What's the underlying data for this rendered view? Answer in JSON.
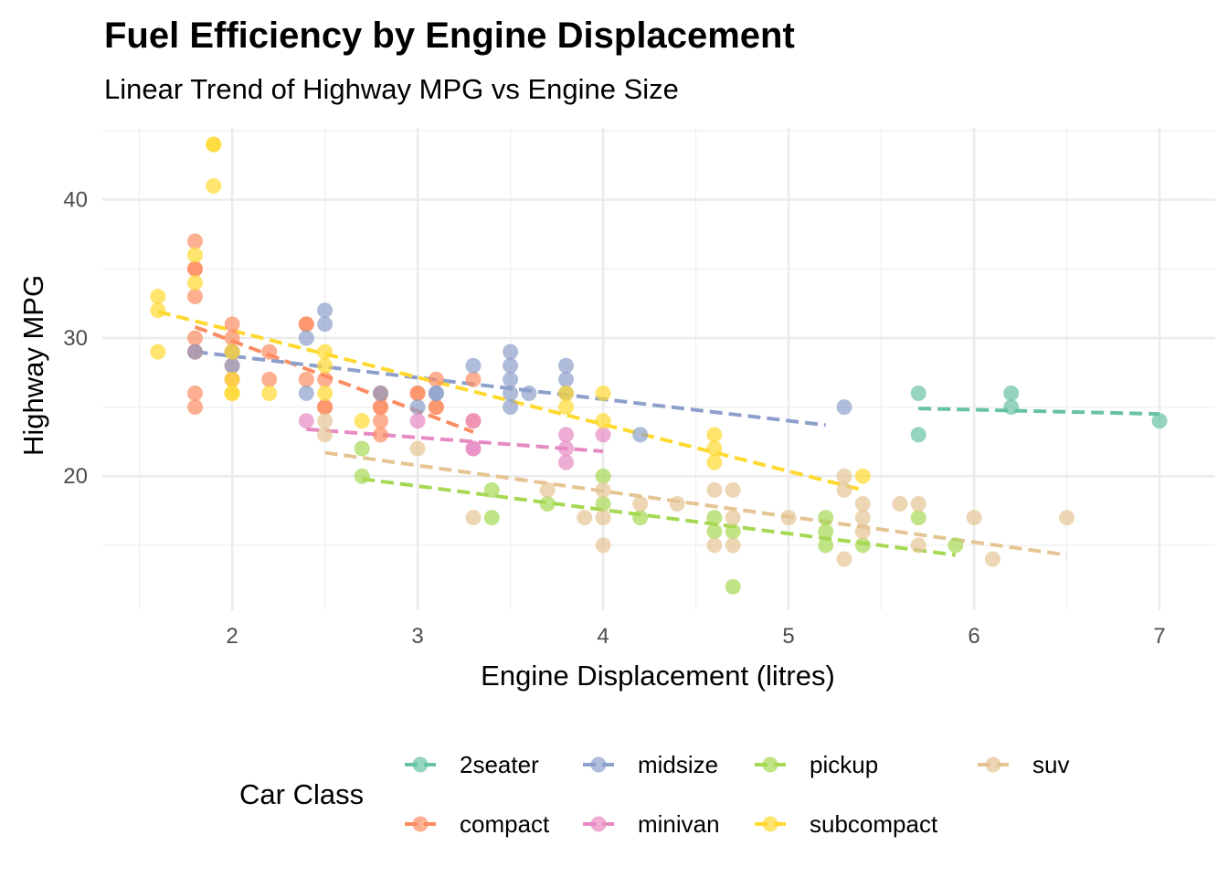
{
  "chart_data": {
    "type": "scatter",
    "title": "Fuel Efficiency by Engine Displacement",
    "subtitle": "Linear Trend of Highway MPG vs Engine Size",
    "xlabel": "Engine Displacement (litres)",
    "ylabel": "Highway MPG",
    "xlim": [
      1.3,
      7.3
    ],
    "ylim": [
      10.3,
      45.2
    ],
    "x_ticks": [
      "2",
      "3",
      "4",
      "5",
      "6",
      "7"
    ],
    "y_ticks": [
      "20",
      "30",
      "40"
    ],
    "grid": true,
    "legend": {
      "title": "Car Class",
      "placement": "bottom"
    },
    "series": [
      {
        "name": "2seater",
        "color": "#66C2A5",
        "points": [
          [
            5.7,
            26
          ],
          [
            5.7,
            23
          ],
          [
            6.2,
            26
          ],
          [
            6.2,
            25
          ],
          [
            7.0,
            24
          ]
        ],
        "trend": [
          [
            5.7,
            24.9
          ],
          [
            7.0,
            24.5
          ]
        ]
      },
      {
        "name": "compact",
        "color": "#FC8D62",
        "points": [
          [
            1.8,
            29
          ],
          [
            1.8,
            29
          ],
          [
            2.0,
            31
          ],
          [
            2.0,
            30
          ],
          [
            2.8,
            26
          ],
          [
            2.8,
            26
          ],
          [
            3.1,
            27
          ],
          [
            1.8,
            26
          ],
          [
            1.8,
            25
          ],
          [
            2.0,
            28
          ],
          [
            2.0,
            27
          ],
          [
            2.8,
            25
          ],
          [
            2.8,
            25
          ],
          [
            3.1,
            25
          ],
          [
            3.1,
            25
          ],
          [
            2.2,
            27
          ],
          [
            2.2,
            29
          ],
          [
            2.4,
            31
          ],
          [
            2.4,
            31
          ],
          [
            3.0,
            26
          ],
          [
            3.0,
            26
          ],
          [
            3.3,
            27
          ],
          [
            1.8,
            37
          ],
          [
            1.8,
            35
          ],
          [
            1.8,
            35
          ],
          [
            1.8,
            33
          ],
          [
            1.8,
            30
          ],
          [
            2.0,
            29
          ],
          [
            2.4,
            27
          ],
          [
            2.5,
            27
          ],
          [
            2.5,
            25
          ],
          [
            2.5,
            25
          ],
          [
            2.8,
            23
          ],
          [
            2.8,
            24
          ],
          [
            3.3,
            24
          ]
        ],
        "trend": [
          [
            1.8,
            30.8
          ],
          [
            3.3,
            23.2
          ]
        ]
      },
      {
        "name": "midsize",
        "color": "#8DA0CB",
        "points": [
          [
            2.4,
            30
          ],
          [
            2.4,
            26
          ],
          [
            2.5,
            32
          ],
          [
            2.5,
            31
          ],
          [
            2.8,
            26
          ],
          [
            3.0,
            25
          ],
          [
            3.1,
            26
          ],
          [
            3.1,
            26
          ],
          [
            3.3,
            28
          ],
          [
            3.5,
            29
          ],
          [
            3.5,
            28
          ],
          [
            3.5,
            27
          ],
          [
            3.5,
            26
          ],
          [
            3.5,
            25
          ],
          [
            3.6,
            26
          ],
          [
            3.8,
            28
          ],
          [
            3.8,
            27
          ],
          [
            3.8,
            26
          ],
          [
            4.2,
            23
          ],
          [
            5.3,
            25
          ],
          [
            1.8,
            29
          ],
          [
            2.0,
            29
          ],
          [
            2.0,
            28
          ]
        ],
        "trend": [
          [
            1.8,
            29.0
          ],
          [
            5.2,
            23.7
          ]
        ]
      },
      {
        "name": "minivan",
        "color": "#E78AC3",
        "points": [
          [
            2.4,
            24
          ],
          [
            3.0,
            24
          ],
          [
            3.3,
            22
          ],
          [
            3.3,
            22
          ],
          [
            3.3,
            24
          ],
          [
            3.8,
            23
          ],
          [
            3.8,
            22
          ],
          [
            3.8,
            21
          ],
          [
            4.0,
            23
          ]
        ],
        "trend": [
          [
            2.4,
            23.4
          ],
          [
            4.0,
            21.8
          ]
        ]
      },
      {
        "name": "pickup",
        "color": "#A6D854",
        "points": [
          [
            2.7,
            22
          ],
          [
            2.7,
            20
          ],
          [
            3.4,
            19
          ],
          [
            3.4,
            17
          ],
          [
            3.7,
            18
          ],
          [
            4.0,
            20
          ],
          [
            4.0,
            18
          ],
          [
            4.2,
            17
          ],
          [
            4.6,
            17
          ],
          [
            4.6,
            16
          ],
          [
            4.7,
            16
          ],
          [
            4.7,
            12
          ],
          [
            5.2,
            17
          ],
          [
            5.2,
            15
          ],
          [
            5.2,
            16
          ],
          [
            5.7,
            17
          ],
          [
            5.9,
            15
          ],
          [
            5.4,
            15
          ]
        ],
        "trend": [
          [
            2.7,
            19.8
          ],
          [
            5.9,
            14.3
          ]
        ]
      },
      {
        "name": "subcompact",
        "color": "#FFD92F",
        "points": [
          [
            1.6,
            33
          ],
          [
            1.6,
            32
          ],
          [
            1.6,
            29
          ],
          [
            1.8,
            36
          ],
          [
            1.8,
            34
          ],
          [
            1.9,
            44
          ],
          [
            1.9,
            44
          ],
          [
            1.9,
            41
          ],
          [
            2.0,
            29
          ],
          [
            2.0,
            27
          ],
          [
            2.0,
            26
          ],
          [
            2.0,
            26
          ],
          [
            2.2,
            26
          ],
          [
            2.5,
            29
          ],
          [
            2.5,
            28
          ],
          [
            2.5,
            26
          ],
          [
            2.7,
            24
          ],
          [
            3.8,
            26
          ],
          [
            3.8,
            25
          ],
          [
            4.0,
            26
          ],
          [
            4.0,
            24
          ],
          [
            4.6,
            23
          ],
          [
            4.6,
            22
          ],
          [
            4.6,
            21
          ],
          [
            5.4,
            20
          ]
        ],
        "trend": [
          [
            1.6,
            31.9
          ],
          [
            5.4,
            19.0
          ]
        ]
      },
      {
        "name": "suv",
        "color": "#E5C494",
        "points": [
          [
            2.5,
            24
          ],
          [
            2.5,
            23
          ],
          [
            3.0,
            22
          ],
          [
            3.3,
            17
          ],
          [
            3.7,
            19
          ],
          [
            3.9,
            17
          ],
          [
            4.0,
            19
          ],
          [
            4.0,
            17
          ],
          [
            4.0,
            15
          ],
          [
            4.2,
            18
          ],
          [
            4.4,
            18
          ],
          [
            4.6,
            19
          ],
          [
            4.6,
            15
          ],
          [
            4.7,
            19
          ],
          [
            4.7,
            17
          ],
          [
            4.7,
            15
          ],
          [
            5.0,
            17
          ],
          [
            5.3,
            20
          ],
          [
            5.3,
            19
          ],
          [
            5.3,
            14
          ],
          [
            5.4,
            18
          ],
          [
            5.4,
            17
          ],
          [
            5.4,
            16
          ],
          [
            5.6,
            18
          ],
          [
            5.7,
            18
          ],
          [
            5.7,
            15
          ],
          [
            6.0,
            17
          ],
          [
            6.1,
            14
          ],
          [
            6.5,
            17
          ]
        ],
        "trend": [
          [
            2.5,
            21.7
          ],
          [
            6.5,
            14.3
          ]
        ]
      }
    ]
  }
}
